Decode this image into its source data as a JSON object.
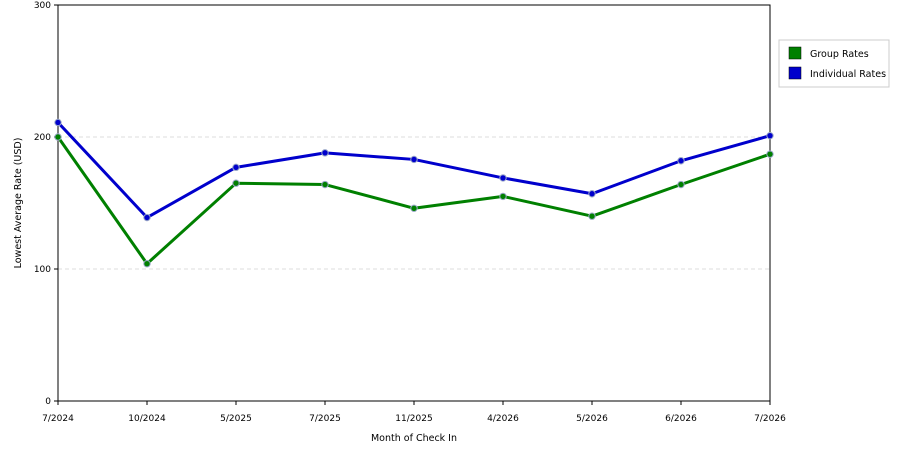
{
  "chart_data": {
    "type": "line",
    "title": "",
    "xlabel": "Month of Check In",
    "ylabel": "Lowest Average Rate (USD)",
    "categories": [
      "7/2024",
      "10/2024",
      "5/2025",
      "7/2025",
      "11/2025",
      "4/2026",
      "5/2026",
      "6/2026",
      "7/2026"
    ],
    "ylim": [
      0,
      300
    ],
    "yticks": [
      "0",
      "100",
      "200",
      "300"
    ],
    "grid": "horizontal-dashed",
    "legend_position": "right",
    "series": [
      {
        "name": "Group Rates",
        "color": "#008000",
        "values": [
          200,
          104,
          165,
          164,
          146,
          155,
          140,
          164,
          187
        ]
      },
      {
        "name": "Individual Rates",
        "color": "#0000cc",
        "values": [
          211,
          139,
          177,
          188,
          183,
          169,
          157,
          182,
          201
        ]
      }
    ]
  }
}
